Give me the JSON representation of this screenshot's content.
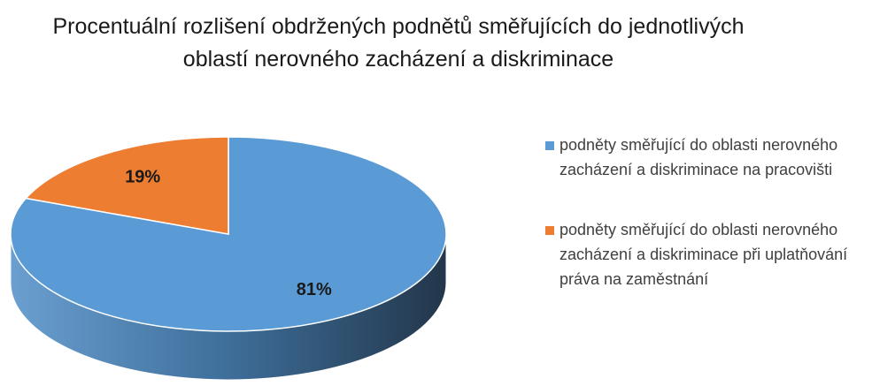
{
  "chart_data": {
    "type": "pie",
    "title": "Procentuální rozlišení obdržených podnětů směřujících do jednotlivých oblastí nerovného zacházení a diskriminace",
    "categories": [
      "podněty směřující do oblasti nerovného zacházení a diskriminace na pracovišti",
      "podněty směřující do oblasti nerovného zacházení a diskriminace při uplatňování práva na zaměstnání"
    ],
    "values": [
      81,
      19
    ],
    "value_labels": [
      "81%",
      "19%"
    ],
    "colors": [
      "#5b9bd5",
      "#ed7d31"
    ],
    "legend": "right"
  }
}
